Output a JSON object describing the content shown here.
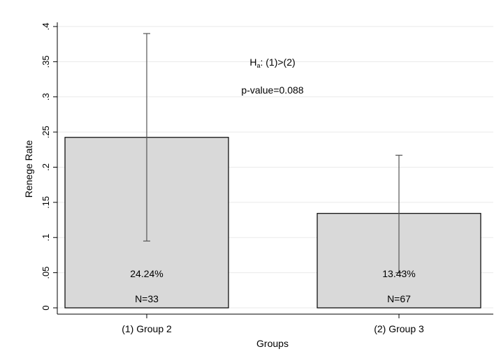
{
  "chart_data": {
    "type": "bar",
    "title": "",
    "xlabel": "Groups",
    "ylabel": "Renege Rate",
    "ylim": [
      0,
      0.4
    ],
    "yticks": [
      0,
      0.05,
      0.1,
      0.15,
      0.2,
      0.25,
      0.3,
      0.35,
      0.4
    ],
    "ytick_labels": [
      "0",
      ".05",
      ".1",
      ".15",
      ".2",
      ".25",
      ".3",
      ".35",
      ".4"
    ],
    "grid": true,
    "categories": [
      "(1) Group 2",
      "(2) Group 3"
    ],
    "values": [
      0.2424,
      0.1343
    ],
    "error_bars": [
      {
        "low": 0.095,
        "high": 0.39
      },
      {
        "low": 0.05,
        "high": 0.217
      }
    ],
    "bar_labels": [
      "24.24%",
      "13.43%"
    ],
    "n_labels": [
      "N=33",
      "N=67"
    ],
    "annotations": {
      "hypothesis_prefix": "H",
      "hypothesis_subscript": "a",
      "hypothesis_suffix": ": (1)>(2)",
      "pvalue": "p-value=0.088"
    },
    "colors": {
      "bar_fill": "#d9d9d9",
      "bar_stroke": "#000000",
      "error_bar": "#555555",
      "grid": "#eaeaea",
      "axis": "#000000"
    }
  }
}
